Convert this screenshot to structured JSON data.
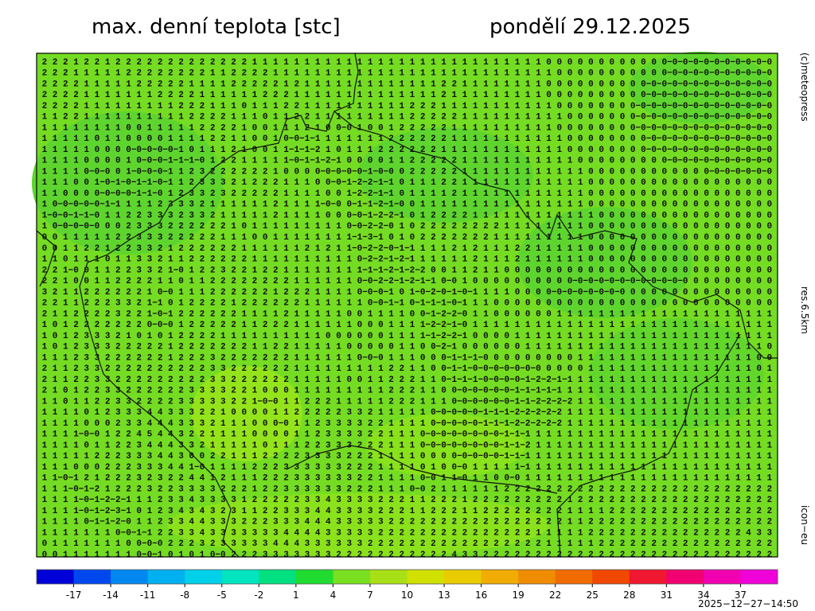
{
  "title": "max. denní teplota [stc]",
  "date": "pondělí 29.12.2025",
  "side_labels": {
    "top": "(c)meteopress",
    "middle": "res.6.5km",
    "bottom": "icon−eu"
  },
  "timestamp": "2025−12−27−14:50",
  "colorbar": {
    "lim": [
      -20,
      40
    ],
    "ticks": [
      -17,
      -14,
      -11,
      -8,
      -5,
      -2,
      1,
      4,
      7,
      10,
      13,
      16,
      19,
      22,
      25,
      28,
      31,
      34,
      37
    ],
    "colors": [
      "#0000d8",
      "#0048ee",
      "#0088f0",
      "#00b0f0",
      "#00d0e8",
      "#00e4c0",
      "#00e080",
      "#20dc30",
      "#78e020",
      "#a8e018",
      "#d0e000",
      "#e8cc00",
      "#f0ac00",
      "#f08c00",
      "#f06c00",
      "#f04800",
      "#f01830",
      "#f00070",
      "#f000b0",
      "#f000d8"
    ]
  },
  "grid_rows": [
    " 2 2 2 1 2 2 1 2 2 2 2 2 2 2 2 2 2 2 2 2 1 1 1 1 1 1 1 1 1 1 1 1 1 1 1 1 1 1 1 1 1 1 1 1 1 1 1 1 0 0 0 0 0 0 0 0 0 0 0 0−0−0−0−0−0−0−0−0−0−0",
    " 2 2 2 1 1 1 1 1 2 2 2 2 2 2 2 2 1 1 2 2 2 2 1 1 1 1 1 1 1 1 1 1 1 1 1 1 1 1 1 1 1 1 1 1 1 1 1 1 1 0 0 0 0 0 0 0 0 0 0 0−0−0−0−0−0−0−0−0−0−0",
    " 2 2 2 2 1 1 1 1 1 2 2 2 2 2 1 1 1 1 2 2 2 2 2 1 2 1 1 1 1 1 1 1 1 1 1 1 1 1 2 2 1 1 1 1 1 1 1 1 0 0 0 0 0 0 0 0 0 0−0−0−0−0−0−0−0−0−0−0−0−0",
    " 2 2 2 2 1 1 1 1 1 1 1 2 2 2 2 1 1 1 1 1 1 2 2 2 1 1 1 1 1 1 1 1 1 1 1 1 1 1 2 1 1 1 1 1 1 1 1 1 0 0 0 0 0 0 0 0 0 0−0−0−0−0−0−0−0−0−0−0−0−0",
    " 2 2 2 2 1 1 1 1 1 1 1 1 1 2 2 2 1 1 1 0 1 1 1 2 2 1 1 1 1 1 1 1 1 1 1 2 2 2 1 1 1 1 1 1 1 1 1 1 1 0 0 0 0 0 0 0 0−0−0−0−0−0−0−0−0−0−0−0−0−0",
    " 1 1 2 2 1 1 1 1 1 1 1 1 1 1 2 2 2 2 1 1 1 0 1 1 2 2 1 1 1 1 1 1 1 1 1 2 2 2 2 2 1 1 1 1 1 1 1 1 1 1 0 0 0 0 0 0 0−0−0−0−0−0−0−0−0−0−0−0−0−0",
    " 1 1 1 1 1 1 1 1 0 0 1 1 1 1 1 2 2 2 2 1 0 0 1 1 1 2 1 0 0−0 1 0 0 1 2 2 2 2 2 1 1 1 1 1 1 1 1 1 1 0 0 0 0 0 0 0 0−0−0−0−0−0−0−0−0−0−0−0−0−0",
    " 1 1 1 1 1 0 1 1 0 0 0 0 1 1 1 1 2 2 1 1 0 0 1 0−0−1−1 1 1 1 1 1 1 2 2 2 2 2 2 1 1 1 1 1 1 1 1 1 1 1 0 0 0 0 0 0 0 0−0−0−0−0−0−0−0−0−0−0−0−0",
    " 1 1 1 1 1 0 0 0 0−0−0−0−0−1 0 1 1 1 2 1 0 0 1 1−1−1−2 1 0 1 1 1 2 2 2 2 2 2 1 1 1 1 1 1 1 1 1 1 1 1 0 0 0 0 0 0 0 0−0−0−0−0−0−0−0−0−0−0−0−0",
    " 1 1 1 1 0 0 0 0 1 0−0−0−1−1−1−0 1 2 2 1 1 1 1 1−0−1−1−2−1 0 0 0 0 1 1 2 2 2 2 2 1 1 1 1 1 1 1 1 1 1 1 0 0 0 0 0 0 0 0 0−0−0−0−0−0−0−0−0−0−0",
    " 1 1 1 1 0−0−0 0 1−0−0−0−1 1 2 3 2 2 2 2 2 2 1 0 0 0 0−0−0−0−0−1−0−0 0 2 2 2 2 2 1 1 1 1 1 1 1 1 1 1 1 1 0 0 0 0 0 0 0 0 0 0 0 0−0−0−0−0−0−0",
    " 1 1 1 0 0 1−0−1−0−1−1−0−1 1 2 3 3 3 2 1 2 2 2 1 1 1 0 0−0−1−2−2−1−1 0 1 1 1 2 2 1 1 1 1 1 1 1 1 1 1 1 1 0 0 0 0 0 0 0 0 0 0 0 0 0 0 0 0 0 0",
    " 1 1 0 0 0 0−0−0−0−1−1−0 1 2 3 3 2 3 2 2 2 2 2 1 1 1 1 0 0 1−2−2−1−1 0 1 1 1 1 2 1 1 1 1 1 1 1 1 1 1 1 1 0 0 0 0 0 0 0 0 0 0 0 0 0 0 0 0 0 0",
    " 1 0−0−0−0−0−1−1 1 1 1 2 3 3 3 2 1 1 1 1 1 1 2 1 1 1 1−0−0 0−1−1−2−1−0 0 1 1 1 1 1 1 1 1 1 1 1 1 1 1 1 1 0 0 0 0 0 0 0 0 0 0 0 0 0 0 0 0 0 0",
    " 1−0−0−1−1−0 1 1 2 2 3 3 3 2 3 3 2 1 1 1 1 1 2 1 1 1 1 0 0 0−0−1−2−2−1 0 1 2 2 2 2 1 1 1 1 1 1 1 1 1 1 1 1 0 0 0 0 0 0 0 0 0 0 0 0 0 0 0 0 0",
    " 1 0−0−0−0−0 0 0 2 3 3 3 2 2 2 2 2 2 1 0 1 1 1 1 1 1 1 1 1 0−0−2−2−0 1 0 2 2 2 2 2 2 2 2 1 1 1 1 1 1 1 1 0 0 0 0 0 0 0 0 0 0 0 0 0 0 0 0 0 0",
    " 0 0 1 1 1 1 1 2 2 3 3 3 2 2 2 2 2 1 1 1 0 0 1 1 1 1 1 1 1 1−1−3−1 0 1 0 2 2 2 2 2 2 2 1 1 1 1 1 1 1 1 1 0 0 0 0 0 0 0 0 0 0 0 0 0 0 0 0 0 0",
    " 0 0 1 1 2 2 1 2 2 3 3 2 1 2 2 2 2 2 2 1 1 1 1 1 1 2 1 2 1 1−0−2−2−0−1−1 1 1 1 2 1 2 1 1 1 2 2 1 1 1 1 1 0 0 0 0 0 0 0 0 0 0 0 0 0 0 0 0 0 0",
    " 1 1 0 1 1 1 0 1 1 3 3 2 1 1 2 2 2 2 2 2 1 1 1 1 1 1 1 1 1 1 0−2−2−1−2−1 1 1 1 1 1 2 1 1 1 2 1 1 1 1 1 1 0 0 0 0 0 0 0 0 0 0 0 0 0 0 0 0 0 0",
    " 2 2 1−0 0 1 1 2 2 3 3 2 1−0 1 2 2 3 2 2 1 2 2 1 1 1 1 1 1 1 1−1−1−2−1−2−2 0 0 1 1 2 1 1 0 0 0 0 0 0 0 0 0 0 0 0 0 0 0 0 0 0 0 0 0 0 0 0 0 0",
    " 2 2 1 0 0 1 1 2 2 2 2 1 1 0 1 1 2 2 2 2 2 2 2 2 1 1 1 1 1 1 0−0−2−2−1−2−1−1 0−0 1 0 0 0 0 0 0 0 0 0 0−0−0−0−0−0−0−0−0−0−0−0 0 0 0 0 0 0 0 0",
    " 3 2 1 1 2 2 2 2 2 2 1 0−0 1 1 1 2 2 2 2 2 2 1 2 2 2 1 1 1 1 0−0−0−1 0 1−0−2−0−1−0−1 1 1 1 0 0 0 0−0−0−0−0−0−0−0 0 0 0 0 0 0 0 0 0 0 0 0 0 0",
    " 2 2 1 1 2 2 2 3 3 2 1−1 0 1 2 2 2 2 1 2 2 2 2 2 2 1 1 1 1 1 1 0−0−1−1 0−1−1−1−0−1 1 1 0 0 0 0 0 0 0 0 0 0 0 0 0 0 0 0 0 0 0 0 0 0 0 0 0 0 0",
    " 2 1 1 2 2 2 2 3 2 2 1−0−1 2 2 2 2 2 2 1 1 1 1 2 1 1 1 1 1 0 0 1 1 1 1 0 0−1−2−2−0 1 1 0 0 0 0 0 0 1 1 1 1 1 1 1 1 1 1 1 1 1 1 1 1 1 1 1 1 1",
    " 1 0 1 2 2 2 2 2 2 2 0−0−0 1 2 2 2 2 2 1 1 2 2 2 1 1 1 1 1 1 0 0 0 1 1 1 1−2−2−1−0 1 1 1 1 1 1 1 1 1 1 1 1 1 1 1 1 1 1 1 1 1 1 1 1 1 1 1 1 1",
    " 1 0 1 2 3 3 3 2 1 0 1 0 1 2 2 2 2 1 1 1 1 1 1 1 1 1 1 0 0 0 0 0 0 1 1 1 1−1−2−2−1 0 0 0 0 1 1 1 1 1 1 1 1 1 1 1 1 1 1 1 1 1 1 1 1 1 1 1 1 1",
    " 1 0 1 2 3 3 3 2 2 2 2 2 1 2 2 2 2 2 2 2 1 1 2 2 1 1 1 1 1 0 0 0 0 0 1 1 0 0−2−1 0 0 0 0 0 0 1 1 1 1 1 1 1 1 1 1 1 1 1 1 1 1 1 1 1 1 1 1 1 0",
    " 1 1 1 2 3 3 2 2 2 2 2 2 1 2 2 2 3 2 2 2 2 2 2 2 1 1 1 1 1 1 0−0−0 1 1 1 0 0 0−1−1−1−0 0 0 0 0 0 0 0 0 1 1 1 1 1 1 1 1 1 1 1 1 1 1 1 1 1 0 0",
    " 2 1 1 2 3 3 2 2 2 2 2 2 2 2 2 2 3 3 2 2 2 2 2 2 1 1 1 1 1 1 1 1 1 2 2 1 1 0 0−1−1−0−0−0−0−0−0−0 0 0 0 0 1 1 1 1 1 1 1 1 1 1 1 1 1 1 1 1 0 1",
    " 2 1 1 2 2 3 3 2 2 2 2 2 2 2 2 2 3 3 2 2 2 2 2 2 1 1 1 1 1 0 0 1 1 2 2 2 1 1 0−1−1−1−0−0−0−0−1−2−2−1−1 1 1 1 1 1 1 1 1 1 1 1 1 1 1 1 1 1 1 1",
    " 2 1 0 1 2 2 3 3 2 2 2 2 2 2 3 3 3 3 2 2 1 0 0 0 1 1 1 1 1 1 1 1 1 2 2 2 1 1 0 0−0−0−0−0−0−1−1−1−1−1 1 1 1 1 1 1 1 1 1 1 1 1 1 1 1 1 1 1 1 1",
    " 1 1 0 1 1 2 2 3 3 2 2 2 2 3 3 3 3 3 2 2 1−0−0 1 1 2 2 2 1 1 1 1 1 2 2 2 1 1 1 0−0−0−0−0−0−1−1−2−2−2−2 1 1 1 1 1 1 1 1 1 1 1 1 1 1 1 1 1 1 1",
    " 1 1 1 1 0 1 2 3 3 3 4 4 3 3 3 2 2 1 0 0 0 0 1 1 2 2 2 2 2 3 3 2 1 1 1 1 1 0−0−0−0−0−1−1−1−2−2−2−2−2 1 1 1 1 1 1 1 1 1 1 1 1 1 1 1 1 1 1 1 1",
    " 1 1 1 1 0 0 0 2 3 3 4 4 4 3 3 3 2 1 1 1 0 0 0−0 1 1 2 3 3 3 3 2 2 1 1 1 1 0−0−0−0−0−1−1−1−2−2−2−2−2 1 1 1 1 1 1 1 1 1 1 1 1 1 1 1 1 1 1 1 1",
    " 1 1 1 1−0−0 1 2 2 4 5 4 4 3 2 2 1 1 1 1 0 0 0 0 1 1 2 3 3 3 3 2 2 1 1 1 0−0−0−0−0−0−0−0−1−1−1 1 1 1 1 1 1 1 1 1 1 1 1 1 1 1 1 1 1 1 1 1 1 1",
    " 1 1 1 1 0 1 1 2 2 3 4 4 4 3 3 2 1 1 1 1 1 0 1 1 1 2 2 3 3 3 2 2 2 1 1 1 0−0−0−0−0−0−0−0−1−1−2 1 1 1 1 1 1 1 1 1 1 1 1 1 1 1 1 1 1 1 1 1 1 1",
    " 1 1 1 1 1 2 2 2 3 3 3 4 4 3 0 0 2 2 1 1 1 2 2 2 2 3 3 3 3 2 2 2 1 1 1 1 0 0 0 0−0−0−0−0−1−1−1 1 1 1 1 1 1 1 1 1 1 1 1 1 1 1 1 1 1 1 1 1 1 1",
    " 1 1 1 0 0 0 2 2 2 3 3 3 4 4 1−0 1 1 1 1 2 2 2 3 3 3 3 3 3 2 2 2 1 1 1 1 0 1 0 0−0 1 1 1 1 1−1 1 1 1 1 1 1 1 1 1 1 1 1 1 1 1 1 1 1 1 1 1 1 1",
    " 1 1−0−1 2 1 2 2 2 3 2 3 2 2 4 4 1 2 1 1 1 2 2 2 3 3 3 3 3 3 2 2 1 1 1 1 0−0 1 1−0 1 1 0 0−0 1 1 1 1 1 1 1 1 1 1 1 1 1 1 1 1 1 1 1 1 1 1 1 1",
    " 1 1 1−0−1−2 1 2 2 2 3 2 2 3 3 3 3 2 2 2 1 2 2 3 3 3 3 3 3 2 2 2 1 1 1 0−0 2 1 1 1 1 1 1 2 2 2 2 2 2 2 2 2 2 2 2 2 2 2 2 2 2 2 2 2 2 2 2 2 2",
    " 1 1 1 1−0−1−2−2−1 1 1 2 3 3 4 3 3 3 3 1 2 2 2 2 2 3 3 4 3 3 3 3 2 2 2 1 1 2 2 2 1 2 2 2 2 2 2 2 2 2 1 2 2 2 2 2 2 2 2 2 2 2 2 2 2 2 2 2 2 2",
    " 1 1 1 1−0−1−2−3−1 0 1 2 3 4 3 4 3 2 3 1 1 2 2 3 3 3 4 4 3 3 3 3 2 2 2 1 1 2 2 2 1 1 2 2 2 2 2 2 2 2 1 1 1 1 2 2 2 2 2 2 2 2 2 2 2 2 2 2 2 2",
    " 1 1 1 1 0−1−1−2−0 1 1 2 3 3 4 4 3 3 3 2 2 2 3 3 3 4 4 4 3 3 3 3 3 2 2 2 2 2 2 2 2 2 2 2 2 2 2 2 2 2 1 1 2 2 2 2 2 2 2 2 2 2 2 2 2 2 2 2 2 2",
    " 1 1 1 1 1 1 1 0−0−1−1 2 2 3 3 4 3 3 3 3 3 3 3 4 4 4 4 3 3 3 3 3 2 2 2 2 2 2 2 2 2 2 2 2 2 2 2 1 1 1 1 1 2 2 2 2 2 2 2 2 2 2 2 2 2 2 2 4 3 3",
    " 0 1 1 1 1 1 1 1 0 0−0−0 2 2 2 3 2 3 3 3 3 3 4 4 4 3 3 3 3 3 3 2 2 2 2 2 2 2 2 2 2 2 2 2 2 2 2 2 1 1 1 1 1 2 2 2 2 2 2 2 2 2 2 2 2 2 2 2 2 2",
    " 0 0 1 1 1 1 1 1 1 0−0−1 0 1 0 1 0−0 2 2 2 3 3 3 3 3 3 3 2 2 2 2 2 2 2 2 2 2 2 4 3 3 2 2 2 2 2 2 2 2 2 2 2 2 2 2 2 2 2 2 2 2 2 2 2 2 2 2 2 2"
  ]
}
